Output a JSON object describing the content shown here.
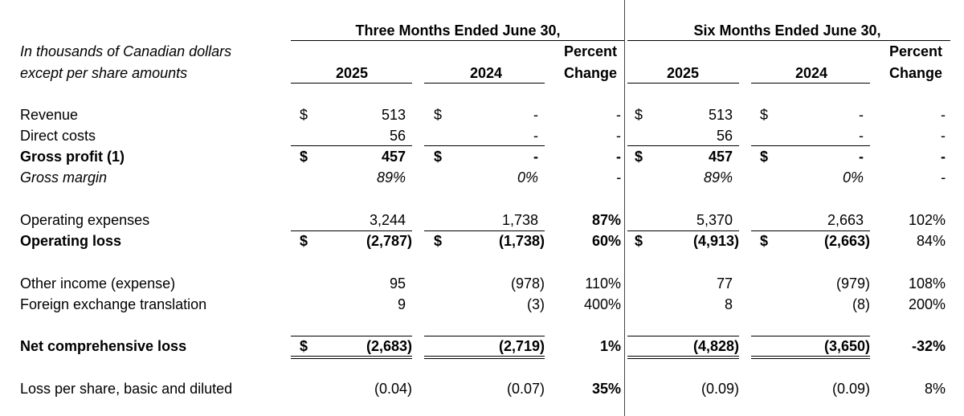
{
  "header": {
    "group_1": "Three Months Ended June 30,",
    "group_2": "Six Months Ended June 30,",
    "caption": [
      "In thousands of Canadian dollars",
      "except per share amounts"
    ],
    "columns": [
      [
        "2025"
      ],
      [
        "2024"
      ],
      [
        "Percent",
        "Change"
      ],
      [
        "2025"
      ],
      [
        "2024"
      ],
      [
        "Percent",
        "Change"
      ]
    ]
  },
  "rows": [
    {
      "label": "Revenue",
      "cells": [
        "$",
        "513",
        "$",
        "-",
        "-",
        "$",
        "513",
        "$",
        "-",
        "-"
      ]
    },
    {
      "label": "Direct costs",
      "cells": [
        null,
        "56",
        null,
        "-",
        "-",
        null,
        "56",
        null,
        "-",
        "-"
      ]
    },
    {
      "label": "Gross profit (1)",
      "cells": [
        "$",
        "457",
        "$",
        "-",
        "-",
        "$",
        "457",
        "$",
        "-",
        "-"
      ]
    },
    {
      "label": "Gross margin",
      "cells": [
        null,
        "89%",
        null,
        "0%",
        "-",
        null,
        "89%",
        null,
        "0%",
        "-"
      ]
    },
    {
      "label": "Operating expenses",
      "cells": [
        null,
        "3,244",
        null,
        "1,738",
        "87%",
        null,
        "5,370",
        null,
        "2,663",
        "102%"
      ]
    },
    {
      "label": "Operating loss",
      "cells": [
        "$",
        "(2,787)",
        "$",
        "(1,738)",
        "60%",
        "$",
        "(4,913)",
        "$",
        "(2,663)",
        "84%"
      ]
    },
    {
      "label": "Other income (expense)",
      "cells": [
        null,
        "95",
        null,
        "(978)",
        "110%",
        null,
        "77",
        null,
        "(979)",
        "108%"
      ]
    },
    {
      "label": "Foreign exchange translation",
      "cells": [
        null,
        "9",
        null,
        "(3)",
        "400%",
        null,
        "8",
        null,
        "(8)",
        "200%"
      ]
    },
    {
      "label": "Net comprehensive loss",
      "cells": [
        "$",
        "(2,683)",
        null,
        "(2,719)",
        "1%",
        null,
        "(4,828)",
        null,
        "(3,650)",
        "-32%"
      ]
    },
    {
      "label": "Loss per share, basic and diluted",
      "cells": [
        null,
        "(0.04)",
        null,
        "(0.07)",
        "35%",
        null,
        "(0.09)",
        null,
        "(0.09)",
        "8%"
      ]
    }
  ]
}
